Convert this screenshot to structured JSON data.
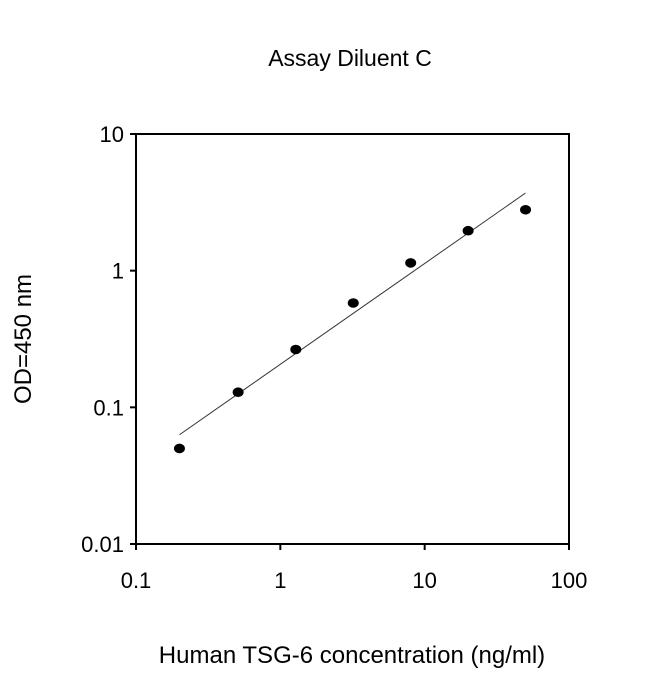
{
  "chart_data": {
    "type": "scatter",
    "title": "Assay Diluent C",
    "xlabel": "Human TSG-6 concentration (ng/ml)",
    "ylabel": "OD=450 nm",
    "xscale": "log",
    "yscale": "log",
    "xlim": [
      0.1,
      100
    ],
    "ylim": [
      0.01,
      10
    ],
    "xticks": [
      0.1,
      1,
      10,
      100
    ],
    "xtick_labels": [
      "0.1",
      "1",
      "10",
      "100"
    ],
    "yticks": [
      0.01,
      0.1,
      1,
      10
    ],
    "ytick_labels": [
      "0.01",
      "0.1",
      "1",
      "10"
    ],
    "grid": false,
    "series": [
      {
        "name": "data",
        "x": [
          0.2,
          0.51,
          1.28,
          3.2,
          8,
          20,
          50
        ],
        "y": [
          0.05,
          0.129,
          0.265,
          0.58,
          1.14,
          1.96,
          2.79
        ]
      }
    ],
    "fit_line": {
      "x": [
        0.2,
        50
      ],
      "y": [
        0.063,
        3.7
      ]
    }
  }
}
